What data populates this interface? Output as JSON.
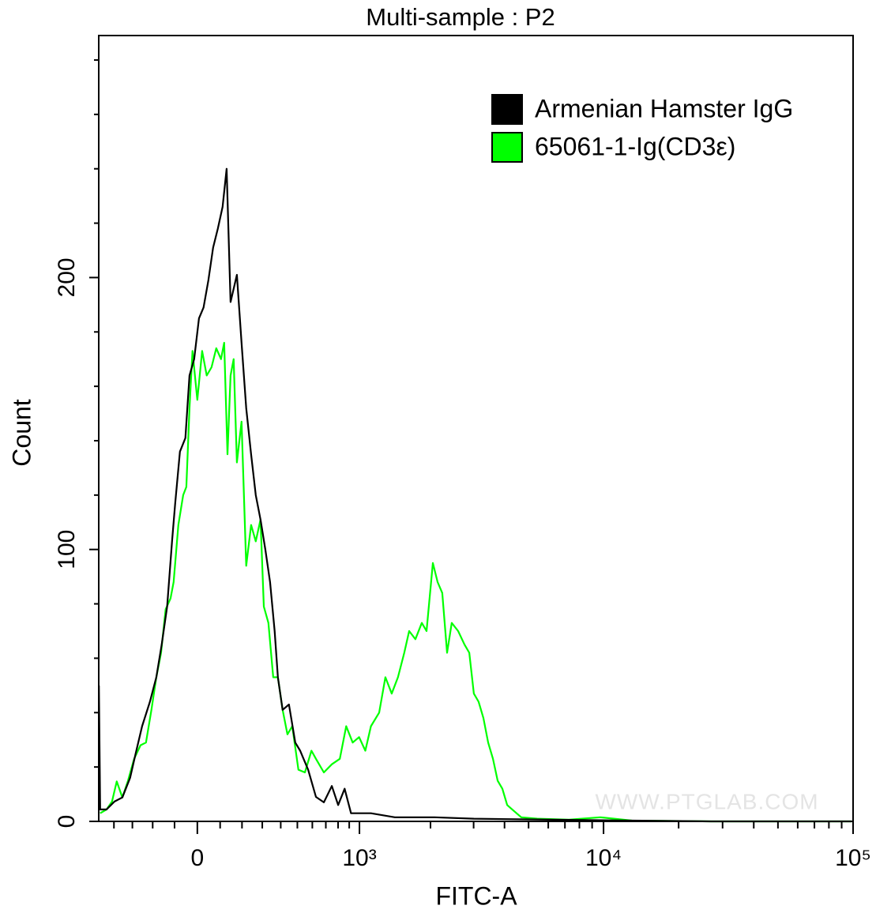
{
  "chart_data": {
    "type": "line",
    "title": "Multi-sample : P2",
    "xlabel": "FITC-A",
    "ylabel": "Count",
    "watermark": "WWW.PTGLAB.COM",
    "xscale": "asinh",
    "xlim": [
      -491,
      100000
    ],
    "xticks": [
      0,
      {
        "value": 1000,
        "label": "10³"
      },
      {
        "value": 10000,
        "label": "10⁴"
      },
      {
        "value": 100000,
        "label": "10⁵"
      }
    ],
    "xminorticks": [
      -400,
      -300,
      -200,
      -100,
      100,
      200,
      300,
      400,
      500,
      600,
      700,
      800,
      900,
      2000,
      3000,
      4000,
      5000,
      6000,
      7000,
      8000,
      9000,
      20000,
      30000,
      40000,
      50000,
      60000,
      70000,
      80000,
      90000
    ],
    "ylim": [
      0,
      289
    ],
    "yticks": [
      0,
      100,
      200
    ],
    "yminorticks": [
      20,
      40,
      60,
      80,
      120,
      140,
      160,
      180,
      220,
      240,
      260,
      280
    ],
    "legend": "upper right",
    "series": [
      {
        "name": "Armenian Hamster IgG",
        "color": "#000000",
        "x": [
          -490,
          -482,
          -443,
          -397,
          -353,
          -312,
          -283,
          -251,
          -213,
          -183,
          -158,
          -133,
          -111,
          -97,
          -76,
          -52,
          -34,
          -14,
          7,
          27,
          48,
          69,
          90,
          111,
          129,
          147,
          176,
          198,
          220,
          244,
          267,
          291,
          316,
          341,
          366,
          384,
          411,
          448,
          487,
          518,
          571,
          626,
          685,
          748,
          801,
          858,
          917,
          979,
          1123,
          1421,
          2077,
          3007,
          6264,
          12990,
          26950,
          98600
        ],
        "values": [
          50,
          4.4,
          4.4,
          7.3,
          8.8,
          16,
          25,
          35,
          44,
          53,
          65,
          79,
          103,
          117,
          136,
          141,
          164,
          170,
          185,
          189,
          199,
          211,
          218,
          226,
          240,
          191,
          201,
          176,
          152,
          135,
          120,
          111,
          100,
          88,
          70,
          53,
          41,
          43,
          29,
          26,
          19,
          9,
          7,
          13,
          6,
          12,
          3,
          3,
          3,
          1.5,
          1.5,
          1,
          0.6,
          0.3,
          0,
          0
        ]
      },
      {
        "name": "65061-1-Ig(CD3ε)",
        "color": "#00ff00",
        "x": [
          -482,
          -443,
          -411,
          -384,
          -353,
          -324,
          -291,
          -259,
          -232,
          -206,
          -183,
          -161,
          -140,
          -118,
          -104,
          -83,
          -62,
          -48,
          -34,
          -21,
          0,
          21,
          41,
          62,
          83,
          104,
          118,
          133,
          147,
          161,
          176,
          198,
          220,
          244,
          267,
          291,
          308,
          332,
          358,
          384,
          411,
          439,
          468,
          507,
          549,
          594,
          626,
          685,
          748,
          815,
          872,
          933,
          996,
          1061,
          1123,
          1219,
          1296,
          1378,
          1465,
          1557,
          1632,
          1733,
          1842,
          1926,
          2045,
          2139,
          2236,
          2339,
          2444,
          2595,
          2756,
          2880,
          3007,
          3143,
          3286,
          3436,
          3592,
          3753,
          3922,
          4100,
          4342,
          4671,
          5415,
          7256,
          9700,
          12990,
          26950,
          98600
        ],
        "values": [
          3,
          4.4,
          7.3,
          14.7,
          8.8,
          14.7,
          23,
          28,
          29,
          41,
          53,
          62,
          78,
          82,
          88,
          109,
          120,
          123,
          152,
          173,
          155,
          173,
          164,
          167,
          174,
          170,
          176,
          135,
          164,
          170,
          132,
          147,
          94,
          109,
          103,
          111,
          79,
          73,
          53,
          53,
          41,
          32,
          35,
          19,
          18,
          26,
          23,
          18,
          21,
          23,
          35,
          29,
          31,
          26,
          35,
          40,
          53,
          47,
          53,
          62,
          70,
          67,
          73,
          70,
          95,
          88,
          84,
          62,
          73,
          70,
          65,
          62,
          47,
          44,
          38,
          29,
          23,
          15,
          12,
          6,
          4,
          1.5,
          1,
          0.6,
          1.5,
          0.3,
          0,
          0
        ]
      }
    ]
  }
}
